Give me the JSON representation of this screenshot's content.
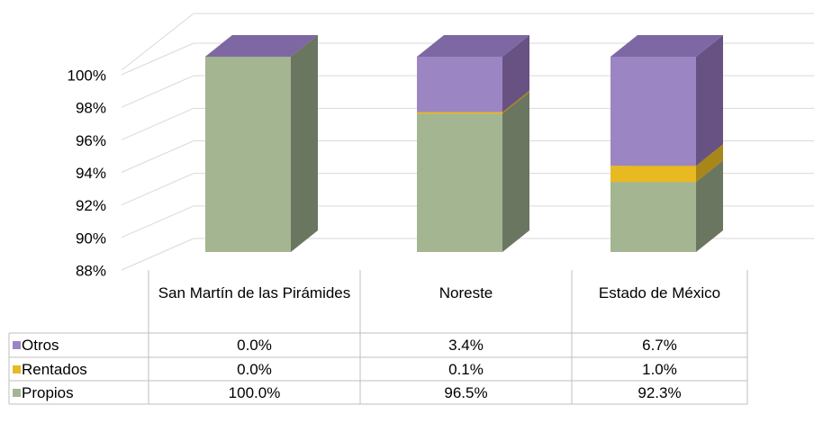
{
  "chart_data": {
    "type": "bar3d_stacked",
    "categories": [
      "San Martín de las Pirámides",
      "Noreste",
      "Estado de México"
    ],
    "series": [
      {
        "name": "Otros",
        "color": "#9b86c3",
        "values": [
          0.0,
          3.4,
          6.7
        ],
        "value_labels": [
          "0.0%",
          "3.4%",
          "6.7%"
        ]
      },
      {
        "name": "Rentados",
        "color": "#e8b921",
        "values": [
          0.0,
          0.1,
          1.0
        ],
        "value_labels": [
          "0.0%",
          "0.1%",
          "1.0%"
        ]
      },
      {
        "name": "Propios",
        "color": "#a4b592",
        "values": [
          100.0,
          96.5,
          92.3
        ],
        "value_labels": [
          "100.0%",
          "96.5%",
          "92.3%"
        ]
      }
    ],
    "ylim": [
      88,
      100
    ],
    "yticks": [
      {
        "value": 88,
        "label": "88%"
      },
      {
        "value": 90,
        "label": "90%"
      },
      {
        "value": 92,
        "label": "92%"
      },
      {
        "value": 94,
        "label": "94%"
      },
      {
        "value": 96,
        "label": "96%"
      },
      {
        "value": 98,
        "label": "98%"
      },
      {
        "value": 100,
        "label": "100%"
      }
    ],
    "grid": true,
    "data_table": true
  }
}
